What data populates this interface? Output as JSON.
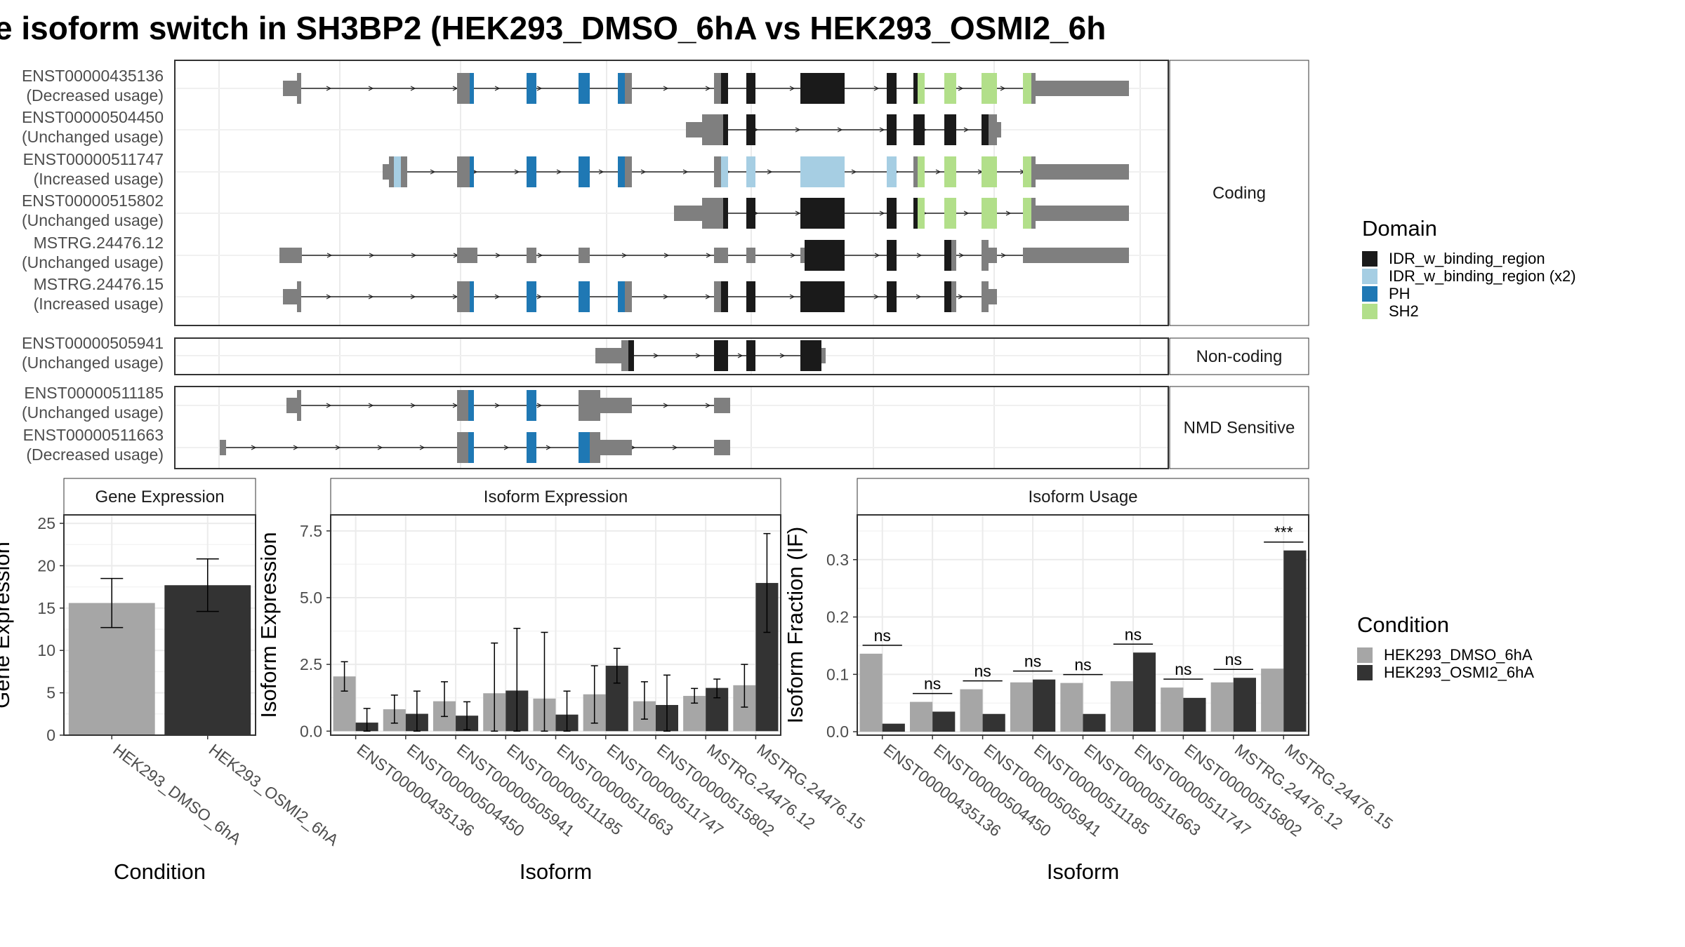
{
  "title": "e isoform switch in SH3BP2 (HEK293_DMSO_6hA vs HEK293_OSMI2_6h",
  "colors": {
    "grey": "#7f7f7f",
    "idr": "#1a1a1a",
    "idr_x2": "#a6cee3",
    "ph": "#1f78b4",
    "sh2": "#b2df8a",
    "cond1": "#a6a6a6",
    "cond2": "#333333"
  },
  "transcripts": {
    "categories": [
      "Coding",
      "Non-coding",
      "NMD Sensitive"
    ],
    "rows": [
      {
        "id": "ENST00000435136",
        "usage": "(Decreased usage)",
        "category": "Coding"
      },
      {
        "id": "ENST00000504450",
        "usage": "(Unchanged usage)",
        "category": "Coding"
      },
      {
        "id": "ENST00000511747",
        "usage": "(Increased usage)",
        "category": "Coding"
      },
      {
        "id": "ENST00000515802",
        "usage": "(Unchanged usage)",
        "category": "Coding"
      },
      {
        "id": "MSTRG.24476.12",
        "usage": "(Unchanged usage)",
        "category": "Coding"
      },
      {
        "id": "MSTRG.24476.15",
        "usage": "(Increased usage)",
        "category": "Coding"
      },
      {
        "id": "ENST00000505941",
        "usage": "(Unchanged usage)",
        "category": "Non-coding"
      },
      {
        "id": "ENST00000511185",
        "usage": "(Unchanged usage)",
        "category": "NMD Sensitive"
      },
      {
        "id": "ENST00000511663",
        "usage": "(Decreased usage)",
        "category": "NMD Sensitive"
      }
    ]
  },
  "legend_domain": {
    "title": "Domain",
    "items": [
      {
        "label": "IDR_w_binding_region",
        "color": "#1a1a1a"
      },
      {
        "label": "IDR_w_binding_region (x2)",
        "color": "#a6cee3"
      },
      {
        "label": "PH",
        "color": "#1f78b4"
      },
      {
        "label": "SH2",
        "color": "#b2df8a"
      }
    ]
  },
  "legend_condition": {
    "title": "Condition",
    "items": [
      {
        "label": "HEK293_DMSO_6hA",
        "color": "#a6a6a6"
      },
      {
        "label": "HEK293_OSMI2_6hA",
        "color": "#333333"
      }
    ]
  },
  "chart_data": [
    {
      "type": "bar",
      "title": "Gene Expression",
      "xlabel": "Condition",
      "ylabel": "Gene Expression",
      "categories": [
        "HEK293_DMSO_6hA",
        "HEK293_OSMI2_6hA"
      ],
      "values": [
        15.6,
        17.7
      ],
      "errors": [
        [
          12.7,
          18.5
        ],
        [
          14.6,
          20.8
        ]
      ],
      "ylim": [
        0,
        26
      ],
      "yticks": [
        0,
        5,
        10,
        15,
        20,
        25
      ]
    },
    {
      "type": "bar",
      "title": "Isoform Expression",
      "xlabel": "Isoform",
      "ylabel": "Isoform Expression",
      "categories": [
        "ENST00000435136",
        "ENST00000504450",
        "ENST00000505941",
        "ENST00000511185",
        "ENST00000511663",
        "ENST00000511747",
        "ENST00000515802",
        "MSTRG.24476.12",
        "MSTRG.24476.15"
      ],
      "series": [
        {
          "name": "HEK293_DMSO_6hA",
          "values": [
            2.05,
            0.82,
            1.12,
            1.42,
            1.22,
            1.38,
            1.12,
            1.32,
            1.72
          ]
        },
        {
          "name": "HEK293_OSMI2_6hA",
          "values": [
            0.32,
            0.65,
            0.58,
            1.52,
            0.62,
            2.45,
            0.98,
            1.62,
            5.55
          ]
        }
      ],
      "errors": [
        [
          [
            1.5,
            2.6
          ],
          [
            0.3,
            1.35
          ],
          [
            0.55,
            1.85
          ],
          [
            0.0,
            3.3
          ],
          [
            0.0,
            3.7
          ],
          [
            0.3,
            2.45
          ],
          [
            0.45,
            1.85
          ],
          [
            1.05,
            1.6
          ],
          [
            0.9,
            2.5
          ]
        ],
        [
          [
            0.0,
            0.85
          ],
          [
            0.0,
            1.5
          ],
          [
            0.05,
            1.1
          ],
          [
            0.0,
            3.85
          ],
          [
            0.0,
            1.5
          ],
          [
            1.8,
            3.1
          ],
          [
            0.0,
            2.1
          ],
          [
            1.25,
            1.95
          ],
          [
            3.7,
            7.4
          ]
        ]
      ],
      "ylim": [
        -0.15,
        8.1
      ],
      "yticks": [
        0.0,
        2.5,
        5.0,
        7.5
      ],
      "ytick_labels": [
        "0.0",
        "2.5",
        "5.0",
        "7.5"
      ]
    },
    {
      "type": "bar",
      "title": "Isoform Usage",
      "xlabel": "Isoform",
      "ylabel": "Isoform Fraction (IF)",
      "categories": [
        "ENST00000435136",
        "ENST00000504450",
        "ENST00000505941",
        "ENST00000511185",
        "ENST00000511663",
        "ENST00000511747",
        "ENST00000515802",
        "MSTRG.24476.12",
        "MSTRG.24476.15"
      ],
      "series": [
        {
          "name": "HEK293_DMSO_6hA",
          "values": [
            0.136,
            0.052,
            0.074,
            0.086,
            0.085,
            0.088,
            0.077,
            0.086,
            0.11
          ]
        },
        {
          "name": "HEK293_OSMI2_6hA",
          "values": [
            0.014,
            0.035,
            0.031,
            0.091,
            0.031,
            0.138,
            0.059,
            0.094,
            0.316
          ]
        }
      ],
      "significance": [
        "ns",
        "ns",
        "ns",
        "ns",
        "ns",
        "ns",
        "ns",
        "ns",
        "***"
      ],
      "ylim": [
        -0.006,
        0.378
      ],
      "yticks": [
        0.0,
        0.1,
        0.2,
        0.3
      ],
      "ytick_labels": [
        "0.0",
        "0.1",
        "0.2",
        "0.3"
      ]
    }
  ]
}
